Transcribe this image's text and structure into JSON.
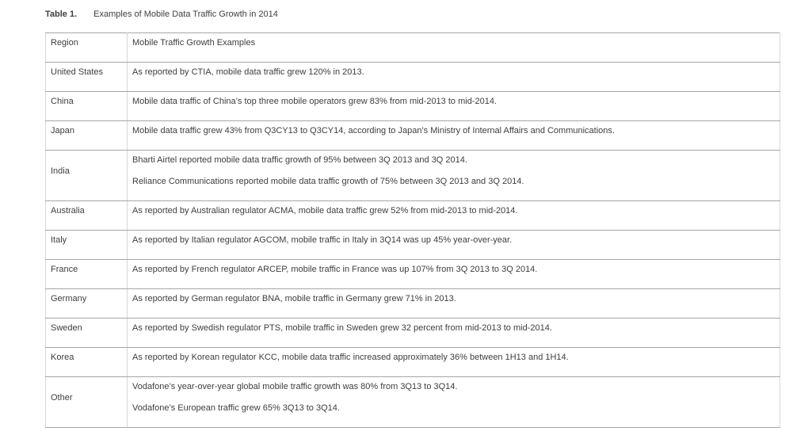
{
  "title": {
    "label": "Table 1.",
    "caption": "Examples of Mobile Data Traffic Growth in 2014"
  },
  "table": {
    "columns": [
      "Region",
      "Mobile Traffic Growth Examples"
    ],
    "rows": [
      {
        "region": "United States",
        "examples": [
          "As reported by CTIA, mobile data traffic grew 120% in 2013."
        ]
      },
      {
        "region": "China",
        "examples": [
          "Mobile data traffic of China’s top three mobile operators grew 83% from mid-2013 to mid-2014."
        ]
      },
      {
        "region": "Japan",
        "examples": [
          "Mobile data traffic grew 43% from Q3CY13 to Q3CY14, according to Japan’s Ministry of Internal Affairs and Communications."
        ]
      },
      {
        "region": "India",
        "examples": [
          "Bharti Airtel reported mobile data traffic growth of 95% between 3Q 2013 and 3Q 2014.",
          "Reliance Communications reported mobile data traffic growth of 75% between 3Q 2013 and 3Q 2014."
        ]
      },
      {
        "region": "Australia",
        "examples": [
          "As reported by Australian regulator ACMA, mobile data traffic grew 52% from mid-2013 to mid-2014."
        ]
      },
      {
        "region": "Italy",
        "examples": [
          "As reported by Italian regulator AGCOM, mobile traffic in Italy in 3Q14 was up 45% year-over-year."
        ]
      },
      {
        "region": "France",
        "examples": [
          "As reported by French regulator ARCEP, mobile traffic in France was up 107% from 3Q 2013 to 3Q 2014."
        ]
      },
      {
        "region": "Germany",
        "examples": [
          "As reported by German regulator BNA, mobile traffic in Germany grew 71% in 2013."
        ]
      },
      {
        "region": "Sweden",
        "examples": [
          "As reported by Swedish regulator PTS, mobile traffic in Sweden grew 32 percent from mid-2013 to mid-2014."
        ]
      },
      {
        "region": "Korea",
        "examples": [
          "As reported by Korean regulator KCC, mobile data traffic increased approximately 36% between 1H13 and 1H14."
        ]
      },
      {
        "region": "Other",
        "examples": [
          "Vodafone’s year-over-year global mobile traffic growth was 80% from 3Q13 to 3Q14.",
          "Vodafone’s European traffic grew 65% 3Q13 to 3Q14."
        ]
      }
    ]
  },
  "colors": {
    "text": "#3e3e40",
    "h_border": "#a6a6a6",
    "v_border": "#d7d7d7",
    "background": "#ffffff"
  }
}
